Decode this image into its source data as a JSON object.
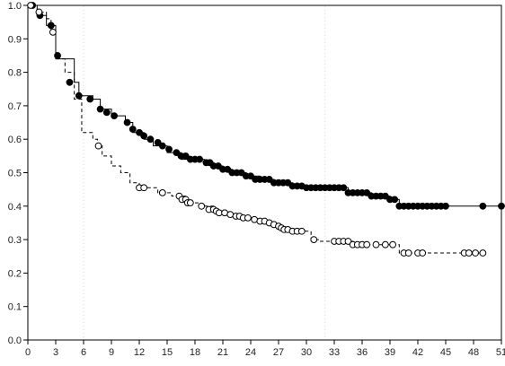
{
  "chart_data": {
    "type": "line",
    "title": "",
    "xlabel": "",
    "ylabel": "",
    "xlim": [
      0,
      51
    ],
    "ylim": [
      0,
      1
    ],
    "x_ticks": [
      "0",
      "3",
      "6",
      "9",
      "12",
      "15",
      "18",
      "21",
      "24",
      "27",
      "30",
      "33",
      "36",
      "39",
      "42",
      "45",
      "48",
      "51"
    ],
    "y_ticks": [
      "0.0",
      "0.1",
      "0.2",
      "0.3",
      "0.4",
      "0.5",
      "0.6",
      "0.7",
      "0.8",
      "0.9",
      "1.0"
    ],
    "grid": false,
    "legend": "none",
    "series": [
      {
        "style": "solid",
        "marker": "filled-circle",
        "color": "#000000",
        "steps": [
          [
            0,
            1.0
          ],
          [
            1,
            0.97
          ],
          [
            2,
            0.94
          ],
          [
            3,
            0.84
          ],
          [
            5,
            0.77
          ],
          [
            5.5,
            0.73
          ],
          [
            7,
            0.72
          ],
          [
            7.8,
            0.69
          ],
          [
            9,
            0.67
          ],
          [
            10.5,
            0.65
          ],
          [
            11.3,
            0.62
          ],
          [
            12.5,
            0.6
          ],
          [
            13.5,
            0.58
          ],
          [
            15,
            0.56
          ],
          [
            16.5,
            0.54
          ],
          [
            19,
            0.53
          ],
          [
            20,
            0.52
          ],
          [
            21,
            0.51
          ],
          [
            22,
            0.5
          ],
          [
            23.5,
            0.49
          ],
          [
            25,
            0.48
          ],
          [
            26.5,
            0.47
          ],
          [
            28.5,
            0.46
          ],
          [
            30,
            0.455
          ],
          [
            34.5,
            0.44
          ],
          [
            37,
            0.43
          ],
          [
            39,
            0.42
          ],
          [
            40,
            0.4
          ],
          [
            45,
            0.4
          ],
          [
            51,
            0.4
          ]
        ],
        "censored": [
          [
            0.5,
            1.0
          ],
          [
            1.3,
            0.97
          ],
          [
            2.5,
            0.94
          ],
          [
            3.2,
            0.85
          ],
          [
            4.5,
            0.77
          ],
          [
            5.5,
            0.73
          ],
          [
            6.7,
            0.72
          ],
          [
            7.8,
            0.69
          ],
          [
            8.5,
            0.68
          ],
          [
            9.3,
            0.67
          ],
          [
            10.7,
            0.65
          ],
          [
            11.3,
            0.63
          ],
          [
            12,
            0.62
          ],
          [
            12.5,
            0.61
          ],
          [
            13.2,
            0.6
          ],
          [
            14,
            0.59
          ],
          [
            14.5,
            0.58
          ],
          [
            15.2,
            0.57
          ],
          [
            16,
            0.56
          ],
          [
            16.5,
            0.55
          ],
          [
            17,
            0.55
          ],
          [
            17.5,
            0.54
          ],
          [
            18,
            0.54
          ],
          [
            18.5,
            0.54
          ],
          [
            19.2,
            0.53
          ],
          [
            19.6,
            0.53
          ],
          [
            20,
            0.52
          ],
          [
            20.5,
            0.52
          ],
          [
            21,
            0.51
          ],
          [
            21.5,
            0.51
          ],
          [
            22,
            0.5
          ],
          [
            22.5,
            0.5
          ],
          [
            23,
            0.5
          ],
          [
            23.5,
            0.49
          ],
          [
            24,
            0.49
          ],
          [
            24.5,
            0.48
          ],
          [
            25,
            0.48
          ],
          [
            25.5,
            0.48
          ],
          [
            26,
            0.48
          ],
          [
            26.5,
            0.47
          ],
          [
            27,
            0.47
          ],
          [
            27.5,
            0.47
          ],
          [
            28,
            0.47
          ],
          [
            28.5,
            0.46
          ],
          [
            29,
            0.46
          ],
          [
            29.5,
            0.46
          ],
          [
            30,
            0.455
          ],
          [
            30.5,
            0.455
          ],
          [
            31,
            0.455
          ],
          [
            31.5,
            0.455
          ],
          [
            32,
            0.455
          ],
          [
            32.5,
            0.455
          ],
          [
            33,
            0.455
          ],
          [
            33.5,
            0.455
          ],
          [
            34,
            0.455
          ],
          [
            34.5,
            0.44
          ],
          [
            35,
            0.44
          ],
          [
            35.5,
            0.44
          ],
          [
            36,
            0.44
          ],
          [
            36.5,
            0.44
          ],
          [
            37,
            0.43
          ],
          [
            37.5,
            0.43
          ],
          [
            38,
            0.43
          ],
          [
            38.5,
            0.43
          ],
          [
            39,
            0.42
          ],
          [
            39.5,
            0.42
          ],
          [
            40,
            0.4
          ],
          [
            40.5,
            0.4
          ],
          [
            41,
            0.4
          ],
          [
            41.5,
            0.4
          ],
          [
            42,
            0.4
          ],
          [
            42.5,
            0.4
          ],
          [
            43,
            0.4
          ],
          [
            43.5,
            0.4
          ],
          [
            44,
            0.4
          ],
          [
            44.5,
            0.4
          ],
          [
            45,
            0.4
          ],
          [
            49,
            0.4
          ],
          [
            51,
            0.4
          ]
        ]
      },
      {
        "style": "dashed",
        "marker": "open-circle",
        "color": "#000000",
        "steps": [
          [
            0,
            1.0
          ],
          [
            1,
            0.98
          ],
          [
            2,
            0.96
          ],
          [
            2.5,
            0.92
          ],
          [
            3,
            0.84
          ],
          [
            4,
            0.8
          ],
          [
            5,
            0.72
          ],
          [
            5.8,
            0.62
          ],
          [
            7,
            0.6
          ],
          [
            7.5,
            0.58
          ],
          [
            8,
            0.55
          ],
          [
            9,
            0.52
          ],
          [
            10,
            0.5
          ],
          [
            11,
            0.47
          ],
          [
            12,
            0.455
          ],
          [
            14,
            0.44
          ],
          [
            15.5,
            0.43
          ],
          [
            17,
            0.41
          ],
          [
            18.5,
            0.4
          ],
          [
            20,
            0.39
          ],
          [
            20.5,
            0.38
          ],
          [
            21.5,
            0.375
          ],
          [
            22,
            0.37
          ],
          [
            23,
            0.365
          ],
          [
            24.5,
            0.355
          ],
          [
            26,
            0.345
          ],
          [
            27,
            0.33
          ],
          [
            28,
            0.325
          ],
          [
            30.5,
            0.3
          ],
          [
            31.5,
            0.295
          ],
          [
            35,
            0.285
          ],
          [
            38,
            0.285
          ],
          [
            40,
            0.26
          ],
          [
            42,
            0.26
          ],
          [
            49,
            0.26
          ]
        ],
        "censored": [
          [
            0.3,
            1.0
          ],
          [
            1.2,
            0.98
          ],
          [
            2.7,
            0.92
          ],
          [
            7.6,
            0.58
          ],
          [
            12,
            0.455
          ],
          [
            12.5,
            0.455
          ],
          [
            14.5,
            0.44
          ],
          [
            16.3,
            0.43
          ],
          [
            16.6,
            0.42
          ],
          [
            17,
            0.42
          ],
          [
            17.2,
            0.41
          ],
          [
            17.5,
            0.41
          ],
          [
            18.7,
            0.4
          ],
          [
            19.5,
            0.39
          ],
          [
            20,
            0.39
          ],
          [
            20.3,
            0.385
          ],
          [
            20.6,
            0.38
          ],
          [
            21.2,
            0.38
          ],
          [
            21.8,
            0.375
          ],
          [
            22.4,
            0.37
          ],
          [
            22.8,
            0.37
          ],
          [
            23.2,
            0.365
          ],
          [
            23.7,
            0.365
          ],
          [
            24.4,
            0.36
          ],
          [
            25,
            0.355
          ],
          [
            25.5,
            0.355
          ],
          [
            26,
            0.35
          ],
          [
            26.5,
            0.345
          ],
          [
            27,
            0.34
          ],
          [
            27.3,
            0.335
          ],
          [
            27.6,
            0.33
          ],
          [
            28,
            0.33
          ],
          [
            28.5,
            0.325
          ],
          [
            29,
            0.325
          ],
          [
            29.5,
            0.325
          ],
          [
            30.8,
            0.3
          ],
          [
            33,
            0.295
          ],
          [
            33.5,
            0.295
          ],
          [
            34,
            0.295
          ],
          [
            34.5,
            0.295
          ],
          [
            35,
            0.285
          ],
          [
            35.5,
            0.285
          ],
          [
            36,
            0.285
          ],
          [
            36.5,
            0.285
          ],
          [
            37.5,
            0.285
          ],
          [
            38.5,
            0.285
          ],
          [
            39.3,
            0.285
          ],
          [
            40.5,
            0.26
          ],
          [
            41,
            0.26
          ],
          [
            42,
            0.26
          ],
          [
            42.5,
            0.26
          ],
          [
            47,
            0.26
          ],
          [
            47.5,
            0.26
          ],
          [
            48.2,
            0.26
          ],
          [
            49,
            0.26
          ]
        ]
      }
    ]
  }
}
